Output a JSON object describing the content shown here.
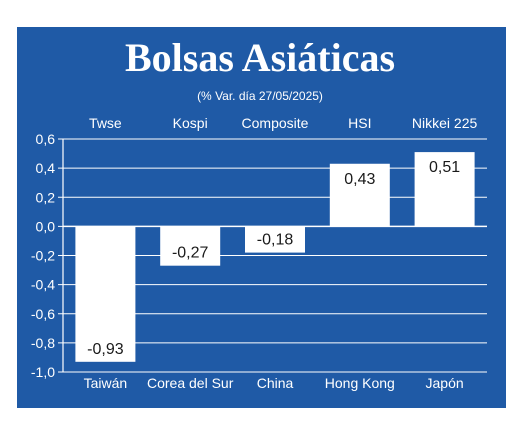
{
  "chart_data": {
    "type": "bar",
    "title": "Bolsas Asiáticas",
    "subtitle": "(% Var. día 27/05/2025)",
    "index_labels": [
      "Twse",
      "Kospi",
      "Composite",
      "HSI",
      "Nikkei 225"
    ],
    "categories": [
      "Taiwán",
      "Corea del Sur",
      "China",
      "Hong Kong",
      "Japón"
    ],
    "values": [
      -0.93,
      -0.27,
      -0.18,
      0.43,
      0.51
    ],
    "value_labels": [
      "-0,93",
      "-0,27",
      "-0,18",
      "0,43",
      "0,51"
    ],
    "ylim": [
      -1.0,
      0.6
    ],
    "yticks": [
      0.6,
      0.4,
      0.2,
      0.0,
      -0.2,
      -0.4,
      -0.6,
      -0.8,
      -1.0
    ],
    "ytick_labels": [
      "0,6",
      "0,4",
      "0,2",
      "0,0",
      "-0,2",
      "-0,4",
      "-0,6",
      "-0,8",
      "-1,0"
    ],
    "grid": true,
    "colors": {
      "background": "#1f5aa6",
      "bars": "#ffffff",
      "grid": "#ffffff",
      "text": "#ffffff"
    }
  }
}
